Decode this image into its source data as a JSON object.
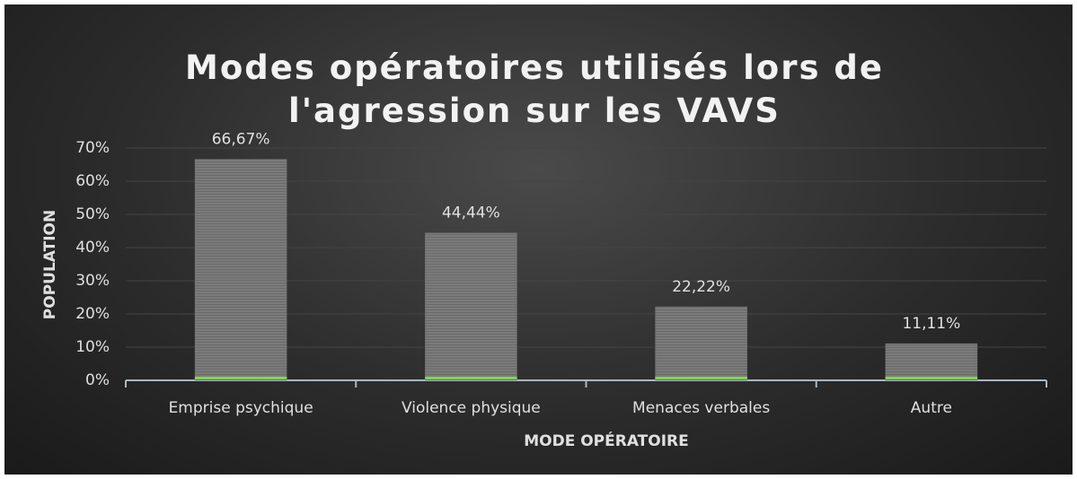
{
  "chart_data": {
    "type": "bar",
    "title": "Modes opératoires utilisés lors de l'agression sur les VAVS",
    "x_label": "MODE OPÉRATOIRE",
    "y_label": "POPULATION",
    "categories": [
      "Emprise psychique",
      "Violence physique",
      "Menaces verbales",
      "Autre"
    ],
    "values": [
      66.67,
      44.44,
      22.22,
      11.11
    ],
    "value_labels": [
      "66,67%",
      "44,44%",
      "22,22%",
      "11,11%"
    ],
    "color": "#7b7b7b",
    "ylim": [
      0,
      70
    ],
    "yticks": [
      {
        "value": 0,
        "label": "0%"
      },
      {
        "value": 10,
        "label": "10%"
      },
      {
        "value": 20,
        "label": "20%"
      },
      {
        "value": 30,
        "label": "30%"
      },
      {
        "value": 40,
        "label": "40%"
      },
      {
        "value": 50,
        "label": "50%"
      },
      {
        "value": 60,
        "label": "60%"
      },
      {
        "value": 70,
        "label": "70%"
      }
    ],
    "grid": true
  }
}
